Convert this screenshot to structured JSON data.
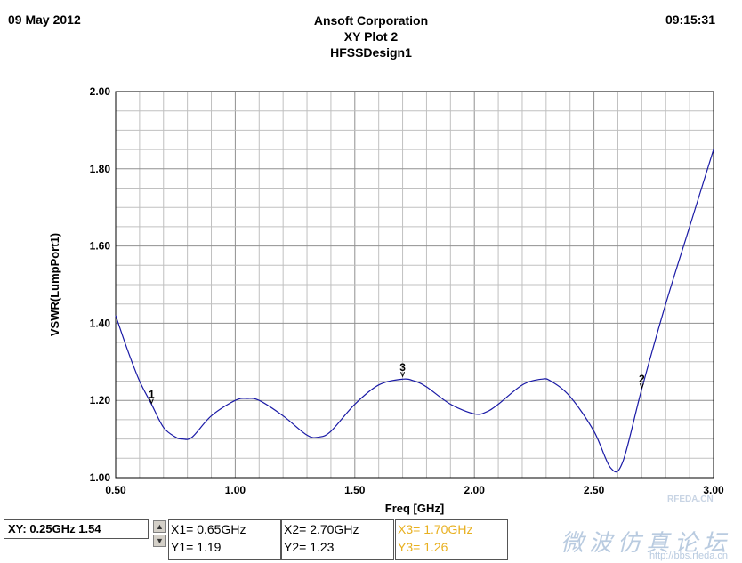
{
  "header": {
    "date": "09 May 2012",
    "company": "Ansoft Corporation",
    "plot_name": "XY Plot 2",
    "design": "HFSSDesign1",
    "time": "09:15:31"
  },
  "chart_data": {
    "type": "line",
    "xlabel": "Freq [GHz]",
    "ylabel": "VSWR(LumpPort1)",
    "xlim": [
      0.5,
      3.0
    ],
    "ylim": [
      1.0,
      2.0
    ],
    "x_ticks": [
      "0.50",
      "1.00",
      "1.50",
      "2.00",
      "2.50",
      "3.00"
    ],
    "y_ticks": [
      "1.00",
      "1.20",
      "1.40",
      "1.60",
      "1.80",
      "2.00"
    ],
    "grid": true,
    "line_color": "#1a1aa6",
    "series": [
      {
        "x": [
          0.5,
          0.55,
          0.6,
          0.65,
          0.7,
          0.75,
          0.78,
          0.82,
          0.9,
          1.0,
          1.05,
          1.1,
          1.2,
          1.3,
          1.35,
          1.4,
          1.5,
          1.6,
          1.7,
          1.75,
          1.8,
          1.9,
          2.0,
          2.05,
          2.1,
          2.2,
          2.28,
          2.32,
          2.4,
          2.5,
          2.57,
          2.62,
          2.7,
          2.8,
          2.9,
          3.0
        ],
        "y": [
          1.42,
          1.33,
          1.25,
          1.19,
          1.13,
          1.105,
          1.1,
          1.105,
          1.16,
          1.2,
          1.205,
          1.2,
          1.16,
          1.11,
          1.105,
          1.12,
          1.19,
          1.24,
          1.255,
          1.25,
          1.235,
          1.19,
          1.165,
          1.17,
          1.19,
          1.24,
          1.255,
          1.25,
          1.21,
          1.12,
          1.025,
          1.04,
          1.23,
          1.45,
          1.65,
          1.85
        ]
      }
    ],
    "markers": [
      {
        "label": "1",
        "x": 0.65,
        "y": 1.19
      },
      {
        "label": "2",
        "x": 2.7,
        "y": 1.23
      },
      {
        "label": "3",
        "x": 1.7,
        "y": 1.26
      }
    ]
  },
  "status_bar": {
    "cursor_readout": "XY: 0.25GHz 1.54",
    "spin_up_icon": "arrow-up-icon",
    "spin_down_icon": "arrow-down-icon",
    "marker_boxes": [
      {
        "x_text": "X1= 0.65GHz",
        "y_text": "Y1= 1.19",
        "color": "#000000"
      },
      {
        "x_text": "X2= 2.70GHz",
        "y_text": "Y2= 1.23",
        "color": "#000000"
      },
      {
        "x_text": "X3= 1.70GHz",
        "y_text": "Y3= 1.26",
        "color": "#e8b020"
      }
    ]
  },
  "watermark": {
    "text": "微波仿真论坛",
    "url": "http://bbs.rfeda.cn",
    "logo": "RFEDA.CN"
  }
}
